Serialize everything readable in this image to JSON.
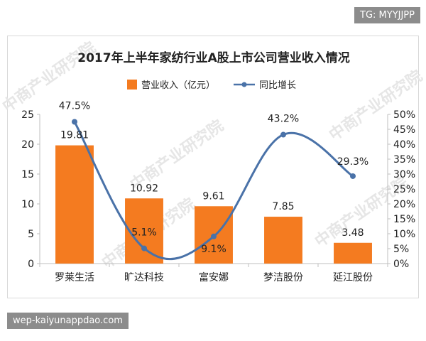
{
  "overlay": {
    "tg_label": "TG: MYYJJPP",
    "site_label": "wep-kaiyunappdao.com"
  },
  "watermark_text": "中商产业研究院",
  "legend": {
    "bar_label": "营业收入（亿元）",
    "line_label": "同比增长"
  },
  "colors": {
    "bar": "#F47B20",
    "line": "#4A72A8",
    "axis": "#bfbfbf",
    "text": "#222222"
  },
  "chart_data": {
    "type": "bar",
    "title": "2017年上半年家纺行业A股上市公司营业收入情况",
    "categories": [
      "罗莱生活",
      "旷达科技",
      "富安娜",
      "梦洁股份",
      "延江股份"
    ],
    "series": [
      {
        "name": "营业收入（亿元）",
        "type": "bar",
        "values": [
          19.81,
          10.92,
          9.61,
          7.85,
          3.48
        ],
        "labels": [
          "19.81",
          "10.92",
          "9.61",
          "7.85",
          "3.48"
        ]
      },
      {
        "name": "同比增长",
        "type": "line",
        "axis": "right",
        "values": [
          47.5,
          5.1,
          9.1,
          43.2,
          29.3
        ],
        "labels": [
          "47.5%",
          "5.1%",
          "9.1%",
          "43.2%",
          "29.3%"
        ]
      }
    ],
    "y_left": {
      "min": 0,
      "max": 25,
      "ticks": [
        "0",
        "5",
        "10",
        "15",
        "20",
        "25"
      ]
    },
    "y_right": {
      "min": 0,
      "max": 50,
      "ticks": [
        "0%",
        "5%",
        "10%",
        "15%",
        "20%",
        "25%",
        "30%",
        "35%",
        "40%",
        "45%",
        "50%"
      ]
    },
    "grid": false,
    "legend_position": "top"
  }
}
